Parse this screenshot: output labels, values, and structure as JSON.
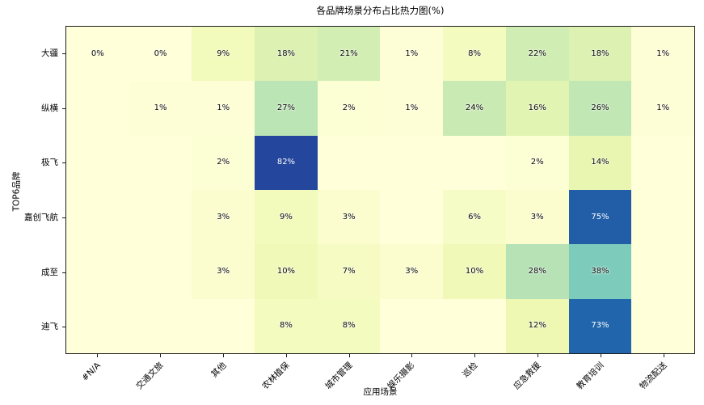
{
  "chart_data": {
    "type": "heatmap",
    "title": "各品牌场景分布占比热力图(%)",
    "xlabel": "应用场景",
    "ylabel": "TOP6品牌",
    "x_categories": [
      "#N/A",
      "交通文旅",
      "其他",
      "农林植保",
      "城市管理",
      "娱乐摄影",
      "巡检",
      "应急救援",
      "教育培训",
      "物流配送"
    ],
    "y_categories": [
      "大疆",
      "纵横",
      "极飞",
      "嘉创飞航",
      "成至",
      "迪飞"
    ],
    "values": [
      [
        0,
        0,
        9,
        18,
        21,
        1,
        8,
        22,
        18,
        1
      ],
      [
        0,
        1,
        1,
        27,
        2,
        1,
        24,
        16,
        26,
        1
      ],
      [
        0,
        0,
        2,
        82,
        0,
        0,
        0,
        2,
        14,
        0
      ],
      [
        0,
        0,
        3,
        9,
        3,
        0,
        6,
        3,
        75,
        0
      ],
      [
        0,
        0,
        3,
        10,
        7,
        3,
        10,
        28,
        38,
        0
      ],
      [
        0,
        0,
        0,
        8,
        8,
        0,
        0,
        12,
        73,
        0
      ]
    ],
    "cell_labels": [
      [
        "0%",
        "0%",
        "9%",
        "18%",
        "21%",
        "1%",
        "8%",
        "22%",
        "18%",
        "1%"
      ],
      [
        "",
        "1%",
        "1%",
        "27%",
        "2%",
        "1%",
        "24%",
        "16%",
        "26%",
        "1%"
      ],
      [
        "",
        "",
        "2%",
        "82%",
        "",
        "",
        "",
        "2%",
        "14%",
        ""
      ],
      [
        "",
        "",
        "3%",
        "9%",
        "3%",
        "",
        "6%",
        "3%",
        "75%",
        ""
      ],
      [
        "",
        "",
        "3%",
        "10%",
        "7%",
        "3%",
        "10%",
        "28%",
        "38%",
        ""
      ],
      [
        "",
        "",
        "",
        "8%",
        "8%",
        "",
        "",
        "12%",
        "73%",
        ""
      ]
    ],
    "colormap": {
      "name": "YlGnBu",
      "stops": [
        "#ffffd9",
        "#edf8b1",
        "#c7e9b4",
        "#7fcdbb",
        "#41b6c4",
        "#1d91c0",
        "#225ea8",
        "#253494",
        "#081d58"
      ],
      "vmin": 0,
      "vmax": 100
    },
    "annotation_colors": {
      "dark_text": "#0a0a0a",
      "light_text": "#ffffff",
      "light_text_threshold": 50
    },
    "axes": {
      "grid": false,
      "border_color": "#1c1c1c",
      "background": "#ffffff",
      "legend": "none"
    }
  }
}
